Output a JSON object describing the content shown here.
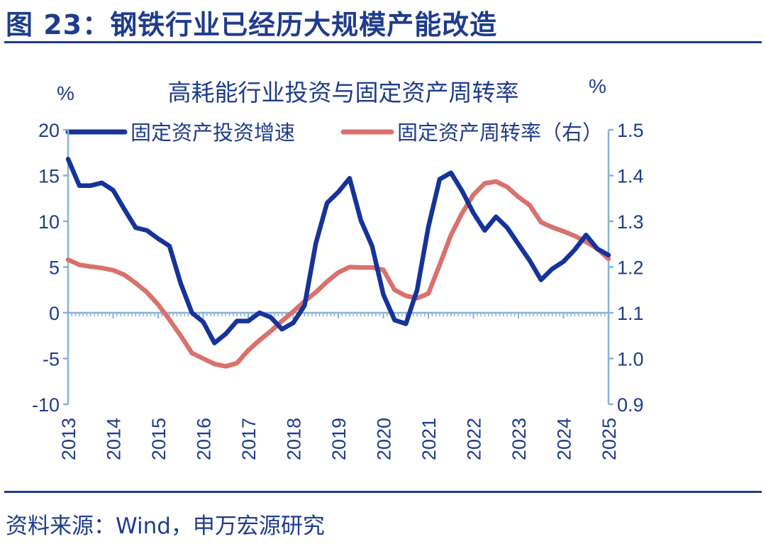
{
  "figure": {
    "title": "图 23：钢铁行业已经历大规模产能改造",
    "source": "资料来源：Wind，申万宏源研究"
  },
  "colors": {
    "left_series": "#16339a",
    "right_series": "#d9716c",
    "axis": "#8ab2d6",
    "text": "#1f3c8c"
  },
  "chart_data": {
    "type": "line",
    "title": "高耗能行业投资与固定资产周转率",
    "y_unit_left": "%",
    "y_unit_right": "%",
    "y_left": {
      "min": -10,
      "max": 20,
      "ticks": [
        20,
        15,
        10,
        5,
        0,
        -5,
        -10
      ]
    },
    "y_right": {
      "min": 0.9,
      "max": 1.5,
      "ticks": [
        "1.5",
        "1.4",
        "1.3",
        "1.2",
        "1.1",
        "1.0",
        "0.9"
      ]
    },
    "x_axis": {
      "min": 2013.0,
      "max": 2025.0,
      "tick_labels": [
        "2013",
        "2014",
        "2015",
        "2016",
        "2017",
        "2018",
        "2019",
        "2020",
        "2021",
        "2022",
        "2023",
        "2024",
        "2025"
      ]
    },
    "legend_position": "top",
    "series": [
      {
        "name": "固定资产投资增速",
        "axis": "left",
        "x": [
          2013.0,
          2013.25,
          2013.5,
          2013.75,
          2014.0,
          2014.25,
          2014.5,
          2014.75,
          2015.0,
          2015.25,
          2015.5,
          2015.75,
          2016.0,
          2016.25,
          2016.5,
          2016.75,
          2017.0,
          2017.25,
          2017.5,
          2017.75,
          2018.0,
          2018.25,
          2018.5,
          2018.75,
          2019.0,
          2019.25,
          2019.5,
          2019.75,
          2020.0,
          2020.25,
          2020.5,
          2020.75,
          2021.0,
          2021.25,
          2021.5,
          2021.75,
          2022.0,
          2022.25,
          2022.5,
          2022.75,
          2023.0,
          2023.25,
          2023.5,
          2023.75,
          2024.0,
          2024.25,
          2024.5,
          2024.75,
          2025.0
        ],
        "values": [
          16.8,
          13.9,
          13.9,
          14.2,
          13.4,
          11.3,
          9.3,
          9.0,
          8.1,
          7.3,
          3.2,
          0.0,
          -1.0,
          -3.3,
          -2.3,
          -0.9,
          -0.9,
          0.0,
          -0.5,
          -1.8,
          -1.1,
          0.8,
          7.6,
          12.0,
          13.2,
          14.7,
          10.1,
          7.3,
          2.0,
          -0.8,
          -1.2,
          2.5,
          9.4,
          14.6,
          15.3,
          13.3,
          10.9,
          9.0,
          10.5,
          9.3,
          7.5,
          5.7,
          3.6,
          4.8,
          5.6,
          6.9,
          8.5,
          7.0,
          6.3
        ]
      },
      {
        "name": "固定资产周转率（右）",
        "axis": "right",
        "x": [
          2013.0,
          2013.25,
          2013.5,
          2013.75,
          2014.0,
          2014.25,
          2014.5,
          2014.75,
          2015.0,
          2015.25,
          2015.5,
          2015.75,
          2016.0,
          2016.25,
          2016.5,
          2016.75,
          2017.0,
          2017.25,
          2017.5,
          2017.75,
          2018.0,
          2018.25,
          2018.5,
          2018.75,
          2019.0,
          2019.25,
          2019.5,
          2019.75,
          2020.0,
          2020.25,
          2020.5,
          2020.75,
          2021.0,
          2021.25,
          2021.5,
          2021.75,
          2022.0,
          2022.25,
          2022.5,
          2022.75,
          2023.0,
          2023.25,
          2023.5,
          2023.75,
          2024.0,
          2024.25,
          2024.5,
          2024.75,
          2025.0
        ],
        "values": [
          1.216,
          1.205,
          1.201,
          1.198,
          1.193,
          1.183,
          1.165,
          1.145,
          1.118,
          1.085,
          1.05,
          1.012,
          1.0,
          0.988,
          0.983,
          0.99,
          1.018,
          1.04,
          1.06,
          1.082,
          1.103,
          1.125,
          1.145,
          1.168,
          1.188,
          1.2,
          1.199,
          1.199,
          1.194,
          1.15,
          1.137,
          1.132,
          1.142,
          1.205,
          1.27,
          1.318,
          1.358,
          1.383,
          1.387,
          1.375,
          1.353,
          1.335,
          1.298,
          1.287,
          1.278,
          1.268,
          1.255,
          1.24,
          1.218
        ]
      }
    ]
  }
}
